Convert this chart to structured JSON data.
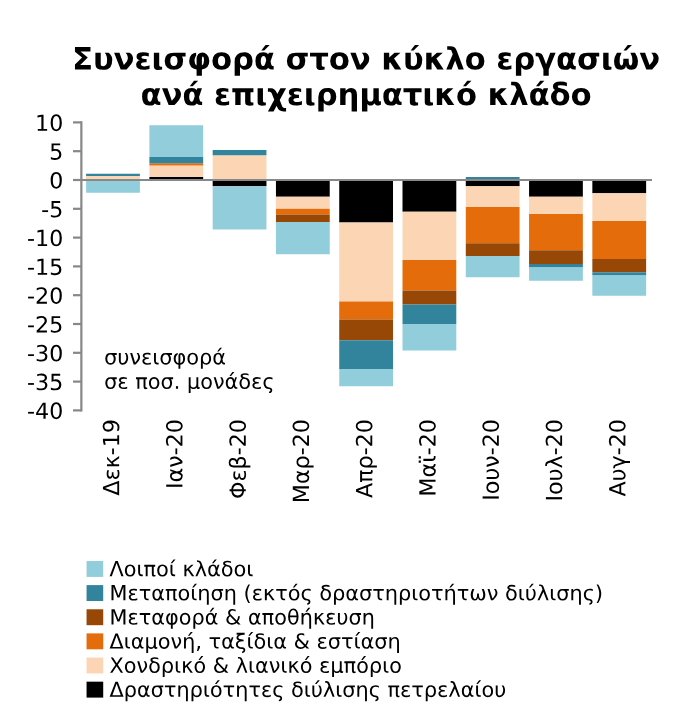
{
  "chart_data": {
    "type": "bar",
    "stacked": true,
    "title": "Συνεισφορά στον κύκλο εργασιών ανά επιχειρηματικό κλάδο",
    "categories": [
      "Δεκ-19",
      "Ιαν-20",
      "Φεβ-20",
      "Μαρ-20",
      "Απρ-20",
      "Μαϊ-20",
      "Ιουν-20",
      "Ιουλ-20",
      "Αυγ-20"
    ],
    "series": [
      {
        "name": "Δραστηριότητες διύλισης πετρελαίου",
        "color": "#000000",
        "values": [
          0,
          0.5,
          -1.1,
          -2.9,
          -7.4,
          -5.5,
          -1.1,
          -2.9,
          -2.3
        ]
      },
      {
        "name": "Χονδρικό & λιανικό εμπόριο",
        "color": "#fcd5b5",
        "values": [
          0.7,
          2.0,
          4.3,
          -2.1,
          -13.7,
          -8.4,
          -3.6,
          -3.0,
          -4.8
        ]
      },
      {
        "name": "Διαμονή, ταξίδια & εστίαση",
        "color": "#e46c0a",
        "values": [
          0,
          0.4,
          0,
          -1.0,
          -3.1,
          -5.3,
          -6.3,
          -6.3,
          -6.6
        ]
      },
      {
        "name": "Μεταφορά & αποθήκευση",
        "color": "#974706",
        "values": [
          0,
          0,
          0,
          -1.3,
          -3.6,
          -2.4,
          -2.2,
          -2.4,
          -2.3
        ]
      },
      {
        "name": "Μεταποίηση (εκτός δραστηριοτήτων διύλισης)",
        "color": "#31849b",
        "values": [
          0.4,
          1.1,
          0.9,
          0,
          -5.0,
          -3.4,
          0.5,
          -0.6,
          -0.6
        ]
      },
      {
        "name": "Λοιποί κλάδοι",
        "color": "#92cddc",
        "values": [
          -2.2,
          5.5,
          -7.5,
          -5.6,
          -3.0,
          -4.6,
          -3.7,
          -2.3,
          -3.5
        ]
      }
    ],
    "ylim": [
      -40,
      10
    ],
    "yticks": [
      -40,
      -35,
      -30,
      -25,
      -20,
      -15,
      -10,
      -5,
      0,
      5,
      10
    ],
    "annotations": [
      "συνεισφορά\nσε ποσ. μονάδες"
    ],
    "legend": "bottom"
  }
}
